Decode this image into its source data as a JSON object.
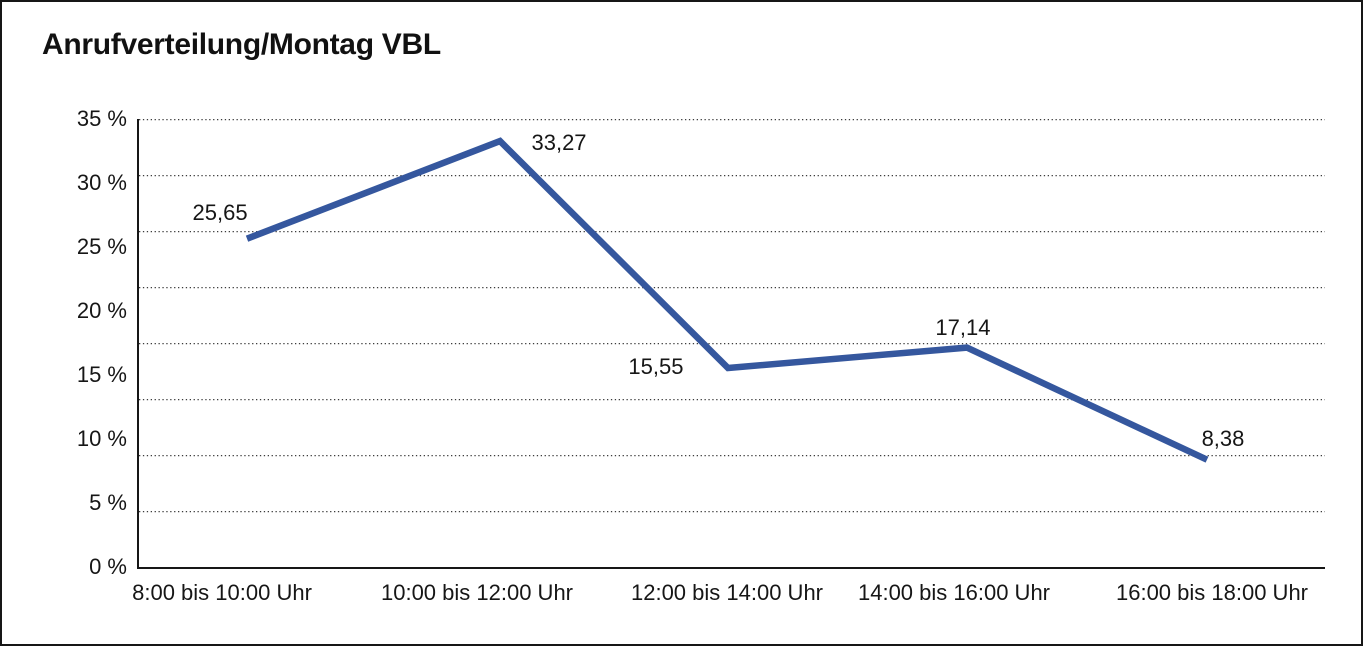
{
  "title": "Anrufverteilung/Montag VBL",
  "chart_data": {
    "type": "line",
    "title": "Anrufverteilung/Montag VBL",
    "categories": [
      "8:00 bis 10:00 Uhr",
      "10:00 bis 12:00 Uhr",
      "12:00 bis 14:00 Uhr",
      "14:00 bis 16:00 Uhr",
      "16:00 bis 18:00 Uhr"
    ],
    "values": [
      25.65,
      33.27,
      15.55,
      17.14,
      8.38
    ],
    "value_labels": [
      "25,65",
      "33,27",
      "15,55",
      "17,14",
      "8,38"
    ],
    "ytick_labels": [
      "0 %",
      "5 %",
      "10 %",
      "15 %",
      "20 %",
      "25 %",
      "30 %",
      "35 %"
    ],
    "ylim": [
      0,
      35
    ],
    "ytick_step": 5,
    "grid_divisions": 8,
    "grid_style": "dotted-horizontal",
    "legend": "none",
    "xlabel": "",
    "ylabel": "",
    "colors": {
      "series_line": "#35579E",
      "axis": "#161616",
      "gridline": "#3c3c3c",
      "text": "#161616",
      "background": "#ffffff",
      "frame_border": "#161616"
    }
  }
}
